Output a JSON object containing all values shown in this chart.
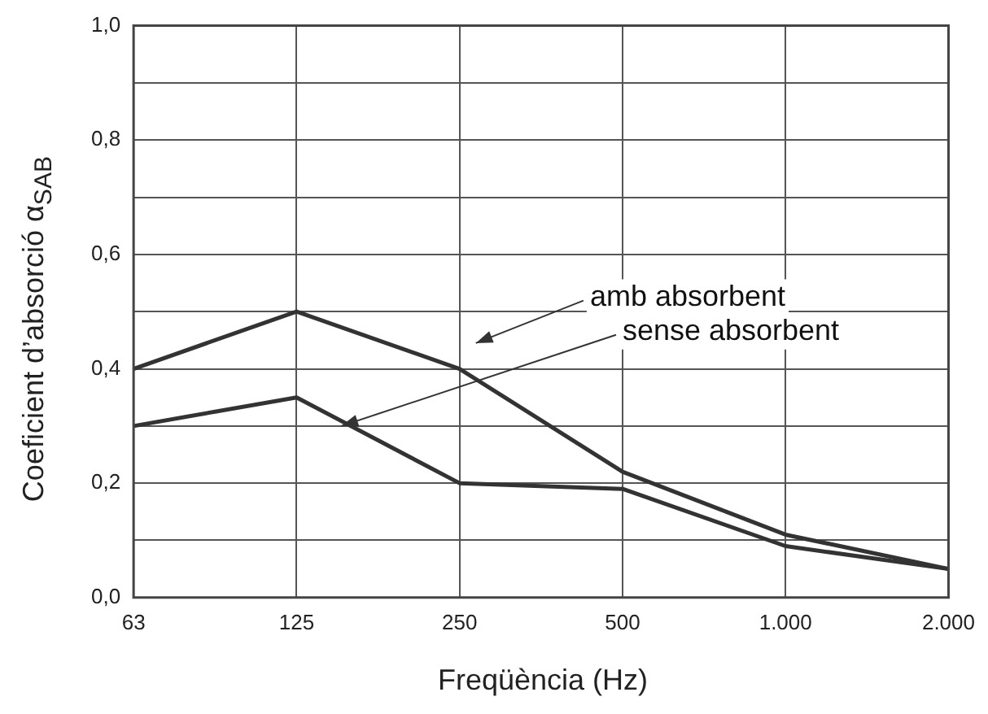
{
  "chart_data": {
    "type": "line",
    "xlabel": "Freqüència (Hz)",
    "ylabel": "Coeficient d’absorció α$_{SAB}$",
    "categories": [
      "63",
      "125",
      "250",
      "500",
      "1.000",
      "2.000"
    ],
    "series": [
      {
        "name": "amb absorbent",
        "color": "#333333",
        "values": [
          0.4,
          0.5,
          0.4,
          0.22,
          0.11,
          0.05
        ]
      },
      {
        "name": "sense absorbent",
        "color": "#333333",
        "values": [
          0.3,
          0.35,
          0.2,
          0.19,
          0.09,
          0.05
        ]
      }
    ],
    "ylim": [
      0,
      1
    ],
    "yticks": [
      {
        "value": 0,
        "label": "0,0"
      },
      {
        "value": 0.1,
        "label": null
      },
      {
        "value": 0.2,
        "label": "0,2"
      },
      {
        "value": 0.3,
        "label": null
      },
      {
        "value": 0.4,
        "label": "0,4"
      },
      {
        "value": 0.5,
        "label": null
      },
      {
        "value": 0.6,
        "label": "0,6"
      },
      {
        "value": 0.7,
        "label": null
      },
      {
        "value": 0.8,
        "label": "0,8"
      },
      {
        "value": 0.9,
        "label": null
      },
      {
        "value": 1,
        "label": "1,0"
      }
    ],
    "grid": true,
    "marker": "none",
    "line_style": "solid"
  }
}
